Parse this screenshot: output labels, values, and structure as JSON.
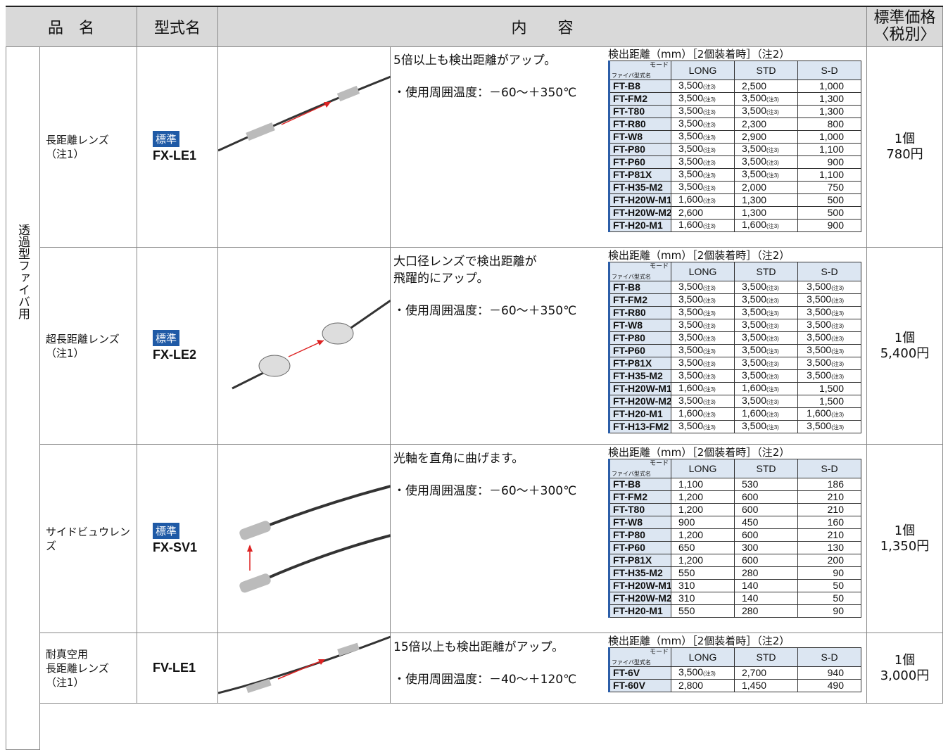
{
  "header": {
    "name": "品　名",
    "model": "型式名",
    "content": "内　　容",
    "price": [
      "標準価格",
      "〈税別〉"
    ]
  },
  "group": "透過型ファイバ用",
  "spec_common": {
    "title": "検出距離（mm）［2個装着時］（注2）",
    "mode": "モード",
    "fiber": "ファイバ型式名",
    "columns": [
      "LONG",
      "STD",
      "S-D"
    ]
  },
  "rows": [
    {
      "name": [
        "長距離レンズ",
        "（注1）"
      ],
      "badge": "標準",
      "model": "FX-LE1",
      "description": [
        [
          "5倍以上も検出距離がアップ。"
        ],
        [
          "・使用周囲温度：－60～＋350℃"
        ]
      ],
      "spec_title": "検出距離（mm）［2個装着時］（注2）",
      "spec": [
        [
          "FT-B8",
          [
            "3,500",
            "(注3)"
          ],
          "2,500",
          "1,000"
        ],
        [
          "FT-FM2",
          [
            "3,500",
            "(注3)"
          ],
          [
            "3,500",
            "(注3)"
          ],
          "1,300"
        ],
        [
          "FT-T80",
          [
            "3,500",
            "(注3)"
          ],
          [
            "3,500",
            "(注3)"
          ],
          "1,300"
        ],
        [
          "FT-R80",
          [
            "3,500",
            "(注3)"
          ],
          "2,300",
          "800"
        ],
        [
          "FT-W8",
          [
            "3,500",
            "(注3)"
          ],
          "2,900",
          "1,000"
        ],
        [
          "FT-P80",
          [
            "3,500",
            "(注3)"
          ],
          [
            "3,500",
            "(注3)"
          ],
          "1,100"
        ],
        [
          "FT-P60",
          [
            "3,500",
            "(注3)"
          ],
          [
            "3,500",
            "(注3)"
          ],
          "900"
        ],
        [
          "FT-P81X",
          [
            "3,500",
            "(注3)"
          ],
          [
            "3,500",
            "(注3)"
          ],
          "1,100"
        ],
        [
          "FT-H35-M2",
          [
            "3,500",
            "(注3)"
          ],
          "2,000",
          "750"
        ],
        [
          "FT-H20W-M1",
          [
            "1,600",
            "(注3)"
          ],
          "1,300",
          "500"
        ],
        [
          "FT-H20W-M2",
          "2,600",
          "1,300",
          "500"
        ],
        [
          "FT-H20-M1",
          [
            "1,600",
            "(注3)"
          ],
          [
            "1,600",
            "(注3)"
          ],
          "900"
        ]
      ],
      "price": [
        "1個",
        "780円"
      ]
    },
    {
      "name": [
        "超長距離レンズ",
        "（注1）"
      ],
      "badge": "標準",
      "model": "FX-LE2",
      "description": [
        [
          "大口径レンズで検出距離が",
          "飛躍的にアップ。"
        ],
        [
          "・使用周囲温度：－60～＋350℃"
        ]
      ],
      "spec_title": "検出距離（mm）［2個装着時］（注2）",
      "spec": [
        [
          "FT-B8",
          [
            "3,500",
            "(注3)"
          ],
          [
            "3,500",
            "(注3)"
          ],
          [
            "3,500",
            "(注3)"
          ]
        ],
        [
          "FT-FM2",
          [
            "3,500",
            "(注3)"
          ],
          [
            "3,500",
            "(注3)"
          ],
          [
            "3,500",
            "(注3)"
          ]
        ],
        [
          "FT-R80",
          [
            "3,500",
            "(注3)"
          ],
          [
            "3,500",
            "(注3)"
          ],
          [
            "3,500",
            "(注3)"
          ]
        ],
        [
          "FT-W8",
          [
            "3,500",
            "(注3)"
          ],
          [
            "3,500",
            "(注3)"
          ],
          [
            "3,500",
            "(注3)"
          ]
        ],
        [
          "FT-P80",
          [
            "3,500",
            "(注3)"
          ],
          [
            "3,500",
            "(注3)"
          ],
          [
            "3,500",
            "(注3)"
          ]
        ],
        [
          "FT-P60",
          [
            "3,500",
            "(注3)"
          ],
          [
            "3,500",
            "(注3)"
          ],
          [
            "3,500",
            "(注3)"
          ]
        ],
        [
          "FT-P81X",
          [
            "3,500",
            "(注3)"
          ],
          [
            "3,500",
            "(注3)"
          ],
          [
            "3,500",
            "(注3)"
          ]
        ],
        [
          "FT-H35-M2",
          [
            "3,500",
            "(注3)"
          ],
          [
            "3,500",
            "(注3)"
          ],
          [
            "3,500",
            "(注3)"
          ]
        ],
        [
          "FT-H20W-M1",
          [
            "1,600",
            "(注3)"
          ],
          [
            "1,600",
            "(注3)"
          ],
          "1,500"
        ],
        [
          "FT-H20W-M2",
          [
            "3,500",
            "(注3)"
          ],
          [
            "3,500",
            "(注3)"
          ],
          "1,500"
        ],
        [
          "FT-H20-M1",
          [
            "1,600",
            "(注3)"
          ],
          [
            "1,600",
            "(注3)"
          ],
          [
            "1,600",
            "(注3)"
          ]
        ],
        [
          "FT-H13-FM2",
          [
            "3,500",
            "(注3)"
          ],
          [
            "3,500",
            "(注3)"
          ],
          [
            "3,500",
            "(注3)"
          ]
        ]
      ],
      "price": [
        "1個",
        "5,400円"
      ]
    },
    {
      "name": [
        "サイドビュウレンズ"
      ],
      "badge": "標準",
      "model": "FX-SV1",
      "description": [
        [
          "光軸を直角に曲げます。"
        ],
        [
          "・使用周囲温度：－60～＋300℃"
        ]
      ],
      "spec_title": "検出距離（mm）［2個装着時］（注2）",
      "spec": [
        [
          "FT-B8",
          "1,100",
          "530",
          "186"
        ],
        [
          "FT-FM2",
          "1,200",
          "600",
          "210"
        ],
        [
          "FT-T80",
          "1,200",
          "600",
          "210"
        ],
        [
          "FT-W8",
          "900",
          "450",
          "160"
        ],
        [
          "FT-P80",
          "1,200",
          "600",
          "210"
        ],
        [
          "FT-P60",
          "650",
          "300",
          "130"
        ],
        [
          "FT-P81X",
          "1,200",
          "600",
          "200"
        ],
        [
          "FT-H35-M2",
          "550",
          "280",
          "90"
        ],
        [
          "FT-H20W-M1",
          "310",
          "140",
          "50"
        ],
        [
          "FT-H20W-M2",
          "310",
          "140",
          "50"
        ],
        [
          "FT-H20-M1",
          "550",
          "280",
          "90"
        ]
      ],
      "price": [
        "1個",
        "1,350円"
      ]
    },
    {
      "name": [
        "耐真空用",
        "長距離レンズ",
        "（注1）"
      ],
      "model": "FV-LE1",
      "description": [
        [
          "15倍以上も検出距離がアップ。"
        ],
        [
          "・使用周囲温度：－40～＋120℃"
        ]
      ],
      "spec_title": "検出距離（mm）［2個装着時］（注2）",
      "spec": [
        [
          "FT-6V",
          [
            "3,500",
            "(注3)"
          ],
          "2,700",
          "940"
        ],
        [
          "FT-60V",
          "2,800",
          "1,450",
          "490"
        ]
      ],
      "price": [
        "1個",
        "3,000円"
      ]
    }
  ]
}
